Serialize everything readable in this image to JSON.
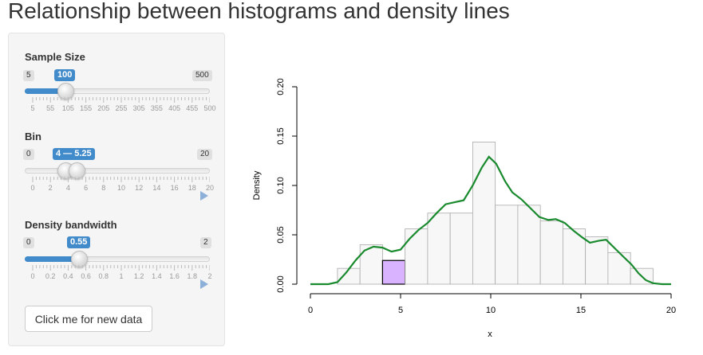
{
  "page_title": "Relationship between histograms and density lines",
  "sliders": {
    "sample_size": {
      "label": "Sample Size",
      "min_label": "5",
      "max_label": "500",
      "value_label": "100",
      "grid_labels": [
        "5",
        "55",
        "105",
        "155",
        "205",
        "255",
        "305",
        "355",
        "405",
        "455",
        "500"
      ],
      "value": 100,
      "min": 5,
      "max": 500
    },
    "bin": {
      "label": "Bin",
      "min_label": "0",
      "max_label": "20",
      "value_label": "4 — 5.25",
      "grid_labels": [
        "0",
        "2",
        "4",
        "6",
        "8",
        "10",
        "12",
        "14",
        "16",
        "18",
        "20"
      ],
      "range": [
        4,
        5.25
      ],
      "min": 0,
      "max": 20
    },
    "bandwidth": {
      "label": "Density bandwidth",
      "min_label": "0",
      "max_label": "2",
      "value_label": "0.55",
      "grid_labels": [
        "0",
        "0.2",
        "0.4",
        "0.6",
        "0.8",
        "1",
        "1.2",
        "1.4",
        "1.6",
        "1.8",
        "2"
      ],
      "value": 0.55,
      "min": 0,
      "max": 2
    }
  },
  "button_label": "Click me for new data",
  "colors": {
    "accent": "#428bca",
    "density_line": "#1a8a2e",
    "highlight_bar": "#d9b3ff",
    "bar_fill": "#f7f7f7"
  },
  "chart_data": {
    "type": "bar",
    "title": "",
    "xlabel": "x",
    "ylabel": "Density",
    "xlim": [
      0,
      20
    ],
    "ylim": [
      0,
      0.2
    ],
    "x_ticks": [
      "0",
      "5",
      "10",
      "15",
      "20"
    ],
    "y_ticks": [
      "0.00",
      "0.05",
      "0.10",
      "0.15",
      "0.20"
    ],
    "bin_width": 1.25,
    "bins": [
      {
        "start": 1.5,
        "density": 0.016
      },
      {
        "start": 2.75,
        "density": 0.04
      },
      {
        "start": 4.0,
        "density": 0.024,
        "highlight": true
      },
      {
        "start": 5.25,
        "density": 0.056
      },
      {
        "start": 6.5,
        "density": 0.072
      },
      {
        "start": 7.75,
        "density": 0.072
      },
      {
        "start": 9.0,
        "density": 0.144
      },
      {
        "start": 10.25,
        "density": 0.08
      },
      {
        "start": 11.5,
        "density": 0.08
      },
      {
        "start": 12.75,
        "density": 0.064
      },
      {
        "start": 14.0,
        "density": 0.056
      },
      {
        "start": 15.25,
        "density": 0.048
      },
      {
        "start": 16.5,
        "density": 0.032
      },
      {
        "start": 17.75,
        "density": 0.016
      }
    ],
    "density_curve": [
      [
        0.0,
        0.0
      ],
      [
        1.0,
        0.0
      ],
      [
        1.5,
        0.002
      ],
      [
        2.0,
        0.012
      ],
      [
        2.5,
        0.024
      ],
      [
        3.0,
        0.034
      ],
      [
        3.5,
        0.038
      ],
      [
        4.0,
        0.037
      ],
      [
        4.5,
        0.033
      ],
      [
        5.0,
        0.035
      ],
      [
        5.5,
        0.046
      ],
      [
        6.0,
        0.055
      ],
      [
        6.5,
        0.062
      ],
      [
        7.0,
        0.072
      ],
      [
        7.5,
        0.081
      ],
      [
        8.0,
        0.083
      ],
      [
        8.5,
        0.085
      ],
      [
        9.0,
        0.1
      ],
      [
        9.5,
        0.118
      ],
      [
        9.9,
        0.129
      ],
      [
        10.3,
        0.122
      ],
      [
        10.8,
        0.104
      ],
      [
        11.2,
        0.093
      ],
      [
        11.7,
        0.086
      ],
      [
        12.2,
        0.077
      ],
      [
        12.7,
        0.068
      ],
      [
        13.2,
        0.065
      ],
      [
        13.6,
        0.066
      ],
      [
        14.1,
        0.062
      ],
      [
        14.6,
        0.054
      ],
      [
        15.1,
        0.047
      ],
      [
        15.5,
        0.042
      ],
      [
        16.0,
        0.044
      ],
      [
        16.4,
        0.045
      ],
      [
        16.9,
        0.036
      ],
      [
        17.4,
        0.027
      ],
      [
        17.8,
        0.02
      ],
      [
        18.2,
        0.011
      ],
      [
        18.6,
        0.004
      ],
      [
        19.0,
        0.001
      ],
      [
        19.5,
        0.0
      ],
      [
        20.0,
        0.0
      ]
    ]
  }
}
